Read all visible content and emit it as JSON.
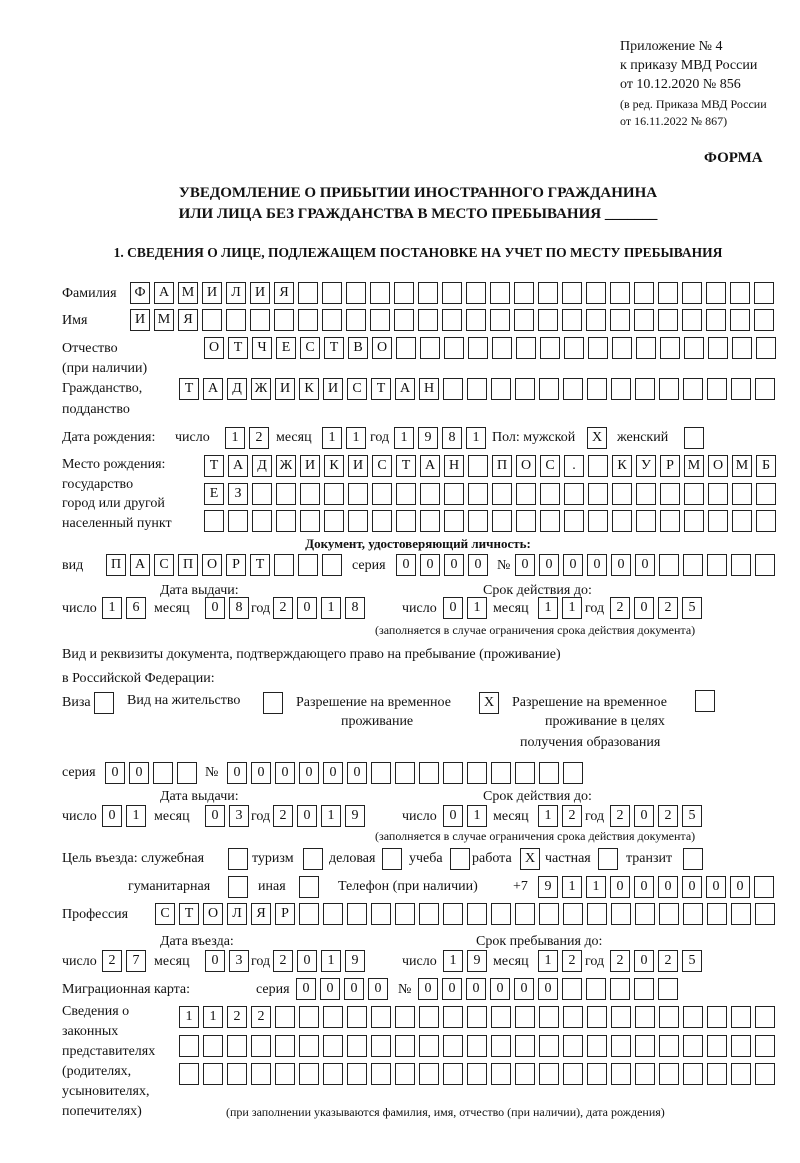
{
  "header": {
    "appendix": "Приложение № 4",
    "order": "к приказу МВД России",
    "order_date": "от 10.12.2020 № 856",
    "edition": "(в ред. Приказа МВД России",
    "edition_date": "от 16.11.2022 № 867)",
    "form_label": "ФОРМА",
    "title_line1": "УВЕДОМЛЕНИЕ О ПРИБЫТИИ ИНОСТРАННОГО ГРАЖДАНИНА",
    "title_line2": "ИЛИ ЛИЦА БЕЗ ГРАЖДАНСТВА В МЕСТО ПРЕБЫВАНИЯ _______",
    "section1": "1. СВЕДЕНИЯ О ЛИЦЕ, ПОДЛЕЖАЩЕМ ПОСТАНОВКЕ НА УЧЕТ ПО МЕСТУ ПРЕБЫВАНИЯ"
  },
  "labels": {
    "surname": "Фамилия",
    "name": "Имя",
    "patronymic": "Отчество",
    "patronymic_note": "(при наличии)",
    "citizenship": "Гражданство,",
    "citizenship2": "подданство",
    "birth_date": "Дата рождения:",
    "day": "число",
    "month": "месяц",
    "year": "год",
    "sex": "Пол: мужской",
    "female": "женский",
    "birthplace1": "Место рождения:",
    "birthplace2": "государство",
    "birthplace3": "город или другой",
    "birthplace4": "населенный пункт",
    "id_doc": "Документ, удостоверяющий личность:",
    "kind": "вид",
    "series": "серия",
    "number": "№",
    "issue_date": "Дата выдачи:",
    "valid_until": "Срок действия до:",
    "validity_note": "(заполняется в случае ограничения срока действия документа)",
    "residence_doc1": "Вид и реквизиты документа, подтверждающего право на пребывание (проживание)",
    "residence_doc2": "в Российской Федерации:",
    "visa": "Виза",
    "residence_permit": "Вид на жительство",
    "temp_residence1": "Разрешение на временное",
    "temp_residence2": "проживание",
    "temp_edu1": "Разрешение на временное",
    "temp_edu2": "проживание в целях",
    "temp_edu3": "получения образования",
    "purpose": "Цель въезда: служебная",
    "tourism": "туризм",
    "business": "деловая",
    "study": "учеба",
    "work": "работа",
    "private": "частная",
    "transit": "транзит",
    "humanitarian": "гуманитарная",
    "other": "иная",
    "phone": "Телефон (при наличии)",
    "phone_prefix": "+7",
    "profession": "Профессия",
    "entry_date": "Дата въезда:",
    "stay_until": "Срок пребывания до:",
    "migration_card": "Миграционная карта:",
    "reps1": "Сведения о",
    "reps2": "законных",
    "reps3": "представителях",
    "reps4": "(родителях,",
    "reps5": "усыновителях,",
    "reps6": "попечителях)",
    "reps_note": "(при заполнении указываются фамилия, имя, отчество (при наличии), дата рождения)"
  },
  "fields": {
    "surname": "ФАМИЛИЯ",
    "name": "ИМЯ",
    "patronymic": "ОТЧЕСТВО",
    "citizenship": "ТАДЖИКИСТАН",
    "birth_day": "12",
    "birth_month": "11",
    "birth_year": "1981",
    "sex_male": "X",
    "sex_female": "",
    "birthplace1": "ТАДЖИКИСТАН ПОС. КУРМОМБ",
    "birthplace2": "ЕЗ",
    "birthplace3": "",
    "id_kind": "ПАСПОРТ",
    "id_series": "0000",
    "id_number": "000000",
    "id_issue_day": "16",
    "id_issue_month": "08",
    "id_issue_year": "2018",
    "id_valid_day": "01",
    "id_valid_month": "11",
    "id_valid_year": "2025",
    "visa": "",
    "residence_permit": "",
    "temp_residence": "X",
    "temp_edu": "",
    "res_series": "00",
    "res_number": "000000",
    "res_issue_day": "01",
    "res_issue_month": "03",
    "res_issue_year": "2019",
    "res_valid_day": "01",
    "res_valid_month": "12",
    "res_valid_year": "2025",
    "p_official": "",
    "p_tourism": "",
    "p_business": "",
    "p_study": "",
    "p_work": "X",
    "p_private": "",
    "p_transit": "",
    "p_humanitarian": "",
    "p_other": "",
    "phone": "911000000",
    "profession": "СТОЛЯР",
    "entry_day": "27",
    "entry_month": "03",
    "entry_year": "2019",
    "stay_day": "19",
    "stay_month": "12",
    "stay_year": "2025",
    "mc_series": "0000",
    "mc_number": "000000",
    "reps1": "1122",
    "reps2": "",
    "reps3": ""
  }
}
